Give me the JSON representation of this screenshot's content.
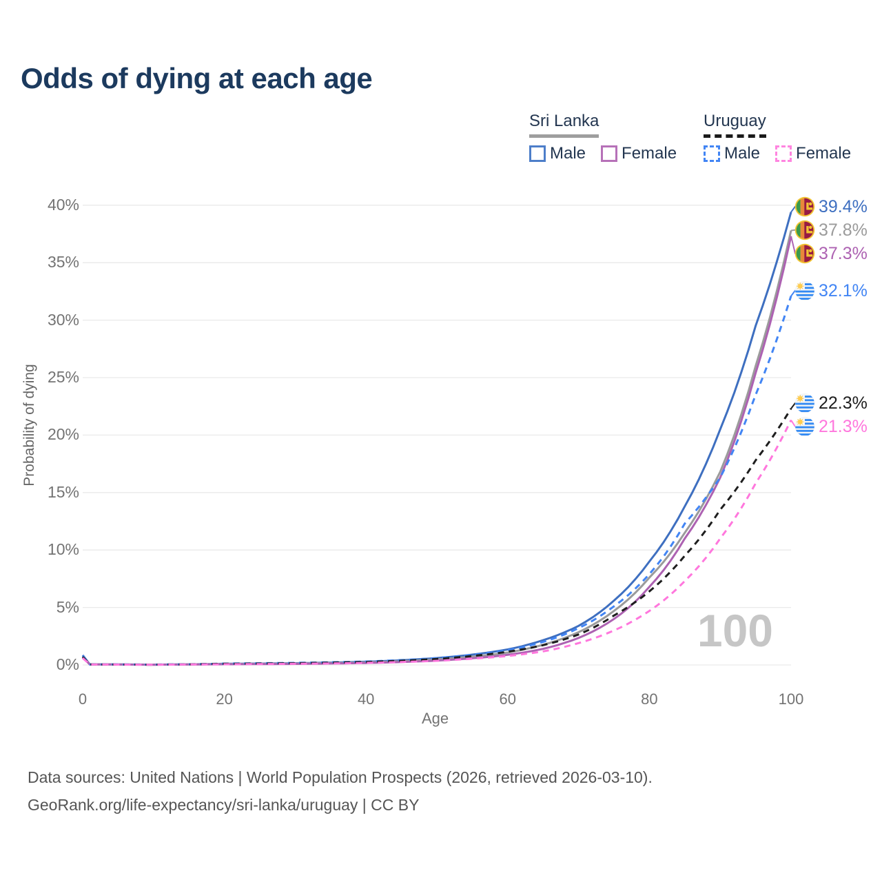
{
  "title": "Odds of dying at each age",
  "colors": {
    "title_text": "#1c3a5e",
    "axis_text": "#737373",
    "grid": "#e9e9e9",
    "watermark": "#c6c6c6",
    "footer_text": "#555555",
    "legend_text": "#233650"
  },
  "legend": {
    "groups": [
      {
        "label": "Sri Lanka",
        "line_style": "solid",
        "line_color": "#9e9e9e",
        "items": [
          {
            "label": "Male",
            "color": "#4d7ec9",
            "dashed": false
          },
          {
            "label": "Female",
            "color": "#b671b8",
            "dashed": false
          }
        ]
      },
      {
        "label": "Uruguay",
        "line_style": "dashed",
        "line_color": "#1b1b1b",
        "items": [
          {
            "label": "Male",
            "color": "#4285f4",
            "dashed": true
          },
          {
            "label": "Female",
            "color": "#ff85e0",
            "dashed": true
          }
        ]
      }
    ]
  },
  "chart_data": {
    "type": "line",
    "title": "Odds of dying at each age",
    "xlabel": "Age",
    "ylabel": "Probability of dying",
    "xlim": [
      0,
      100
    ],
    "ylim": [
      0,
      40
    ],
    "xticks": [
      0,
      20,
      40,
      60,
      80,
      100
    ],
    "yticks": [
      0,
      5,
      10,
      15,
      20,
      25,
      30,
      35,
      40
    ],
    "ytick_suffix": "%",
    "grid": "horizontal",
    "legend_position": "top-right",
    "watermark_age": "100",
    "x": [
      0,
      1,
      10,
      20,
      30,
      40,
      50,
      55,
      60,
      65,
      70,
      75,
      80,
      85,
      90,
      95,
      100
    ],
    "series": [
      {
        "name": "Sri Lanka Male",
        "country": "Sri Lanka",
        "sex": "Male",
        "flag": "sri-lanka",
        "color": "#3e6fc0",
        "dashed": false,
        "end_label": "39.4%",
        "end_value": 39.4,
        "values": [
          0.85,
          0.06,
          0.03,
          0.1,
          0.15,
          0.28,
          0.6,
          0.9,
          1.35,
          2.15,
          3.4,
          5.6,
          9.0,
          13.8,
          20.5,
          29.5,
          39.4
        ]
      },
      {
        "name": "Sri Lanka",
        "country": "Sri Lanka",
        "sex": "All",
        "flag": "sri-lanka",
        "color": "#9b9b9b",
        "dashed": false,
        "end_label": "37.8%",
        "end_value": 37.8,
        "values": [
          0.75,
          0.05,
          0.025,
          0.08,
          0.12,
          0.22,
          0.48,
          0.72,
          1.08,
          1.75,
          2.85,
          4.7,
          7.6,
          11.5,
          16.8,
          26.0,
          37.8
        ]
      },
      {
        "name": "Sri Lanka Female",
        "country": "Sri Lanka",
        "sex": "Female",
        "flag": "sri-lanka",
        "color": "#ad62b2",
        "dashed": false,
        "end_label": "37.3%",
        "end_value": 37.3,
        "values": [
          0.65,
          0.05,
          0.02,
          0.06,
          0.09,
          0.17,
          0.38,
          0.58,
          0.88,
          1.4,
          2.35,
          4.0,
          6.8,
          11.0,
          16.3,
          25.4,
          37.3
        ]
      },
      {
        "name": "Uruguay Male",
        "country": "Uruguay",
        "sex": "Male",
        "flag": "uruguay",
        "color": "#4285f4",
        "dashed": true,
        "end_label": "32.1%",
        "end_value": 32.1,
        "values": [
          0.8,
          0.05,
          0.03,
          0.12,
          0.18,
          0.3,
          0.6,
          0.88,
          1.28,
          2.0,
          3.2,
          5.1,
          7.9,
          12.3,
          16.3,
          23.5,
          32.1
        ]
      },
      {
        "name": "Uruguay",
        "country": "Uruguay",
        "sex": "All",
        "flag": "uruguay",
        "color": "#1e1e1e",
        "dashed": true,
        "end_label": "22.3%",
        "end_value": 22.3,
        "values": [
          0.7,
          0.04,
          0.025,
          0.1,
          0.15,
          0.26,
          0.52,
          0.78,
          1.15,
          1.72,
          2.65,
          4.3,
          6.4,
          9.5,
          13.5,
          17.8,
          22.3
        ]
      },
      {
        "name": "Uruguay Female",
        "country": "Uruguay",
        "sex": "Female",
        "flag": "uruguay",
        "color": "#ff77dd",
        "dashed": true,
        "end_label": "21.3%",
        "end_value": 21.3,
        "values": [
          0.6,
          0.04,
          0.02,
          0.06,
          0.1,
          0.18,
          0.36,
          0.54,
          0.78,
          1.18,
          1.9,
          3.0,
          4.7,
          7.3,
          11.0,
          15.8,
          21.3
        ]
      }
    ]
  },
  "footer": {
    "line1": "Data sources: United Nations | World Population Prospects (2026, retrieved 2026-03-10).",
    "line2": "GeoRank.org/life-expectancy/sri-lanka/uruguay | CC BY"
  }
}
